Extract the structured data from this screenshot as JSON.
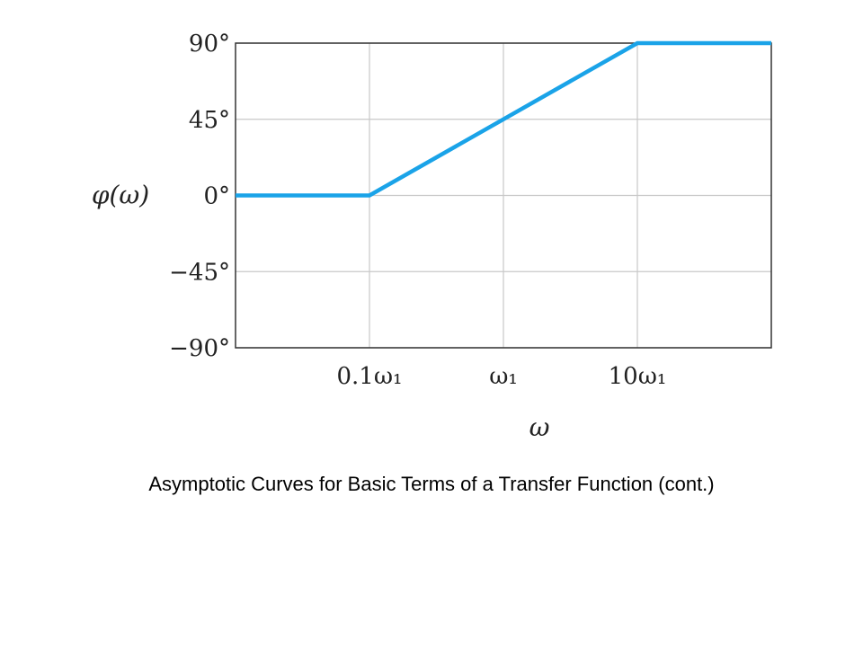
{
  "caption": "Asymptotic Curves for Basic Terms of a Transfer Function (cont.)",
  "chart_data": {
    "type": "line",
    "title": "",
    "xlabel": "ω",
    "ylabel": "φ(ω)",
    "x_scale": "log",
    "xlim": [
      0.01,
      100
    ],
    "ylim": [
      -90,
      90
    ],
    "grid": true,
    "x_ticks": [
      {
        "value": 0.1,
        "label": "0.1ω₁"
      },
      {
        "value": 1,
        "label": "ω₁"
      },
      {
        "value": 10,
        "label": "10ω₁"
      }
    ],
    "y_ticks": [
      {
        "value": 90,
        "label": "90°"
      },
      {
        "value": 45,
        "label": "45°"
      },
      {
        "value": 0,
        "label": "0°"
      },
      {
        "value": -45,
        "label": "−45°"
      },
      {
        "value": -90,
        "label": "−90°"
      }
    ],
    "series": [
      {
        "color": "#1aa3e8",
        "points": [
          {
            "x": 0.01,
            "y": 0
          },
          {
            "x": 0.1,
            "y": 0
          },
          {
            "x": 10,
            "y": 90
          },
          {
            "x": 100,
            "y": 90
          }
        ]
      }
    ]
  }
}
